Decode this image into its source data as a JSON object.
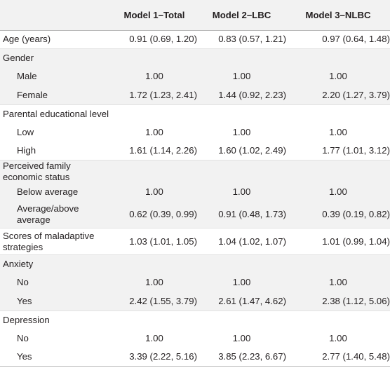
{
  "table": {
    "headers": [
      "",
      "Model 1–Total",
      "Model 2–LBC",
      "Model 3–NLBC"
    ],
    "rows": [
      {
        "label": "Age (years)",
        "indent": false,
        "values": [
          "0.91 (0.69, 1.20)",
          "0.83 (0.57, 1.21)",
          "0.97 (0.64, 1.48)"
        ]
      },
      {
        "label": "Gender",
        "indent": false,
        "values": [
          "",
          "",
          ""
        ]
      },
      {
        "label": "Male",
        "indent": true,
        "values": [
          "1.00",
          "1.00",
          "1.00"
        ]
      },
      {
        "label": "Female",
        "indent": true,
        "values": [
          "1.72 (1.23, 2.41)",
          "1.44 (0.92, 2.23)",
          "2.20 (1.27, 3.79)"
        ]
      },
      {
        "label": "Parental educational level",
        "indent": false,
        "values": [
          "",
          "",
          ""
        ]
      },
      {
        "label": "Low",
        "indent": true,
        "values": [
          "1.00",
          "1.00",
          "1.00"
        ]
      },
      {
        "label": "High",
        "indent": true,
        "values": [
          "1.61 (1.14, 2.26)",
          "1.60 (1.02, 2.49)",
          "1.77 (1.01, 3.12)"
        ]
      },
      {
        "label": "Perceived family economic status",
        "indent": false,
        "values": [
          "",
          "",
          ""
        ]
      },
      {
        "label": "Below average",
        "indent": true,
        "values": [
          "1.00",
          "1.00",
          "1.00"
        ]
      },
      {
        "label": "Average/above average",
        "indent": true,
        "values": [
          "0.62 (0.39, 0.99)",
          "0.91 (0.48, 1.73)",
          "0.39 (0.19, 0.82)"
        ]
      },
      {
        "label": "Scores of maladaptive strategies",
        "indent": false,
        "values": [
          "1.03 (1.01, 1.05)",
          "1.04 (1.02, 1.07)",
          "1.01 (0.99, 1.04)"
        ]
      },
      {
        "label": "Anxiety",
        "indent": false,
        "values": [
          "",
          "",
          ""
        ]
      },
      {
        "label": "No",
        "indent": true,
        "values": [
          "1.00",
          "1.00",
          "1.00"
        ]
      },
      {
        "label": "Yes",
        "indent": true,
        "values": [
          "2.42 (1.55, 3.79)",
          "2.61 (1.47, 4.62)",
          "2.38 (1.12, 5.06)"
        ]
      },
      {
        "label": "Depression",
        "indent": false,
        "values": [
          "",
          "",
          ""
        ]
      },
      {
        "label": "No",
        "indent": true,
        "values": [
          "1.00",
          "1.00",
          "1.00"
        ]
      },
      {
        "label": "Yes",
        "indent": true,
        "values": [
          "3.39 (2.22, 5.16)",
          "3.85 (2.23, 6.67)",
          "2.77 (1.40, 5.48)"
        ]
      }
    ]
  }
}
